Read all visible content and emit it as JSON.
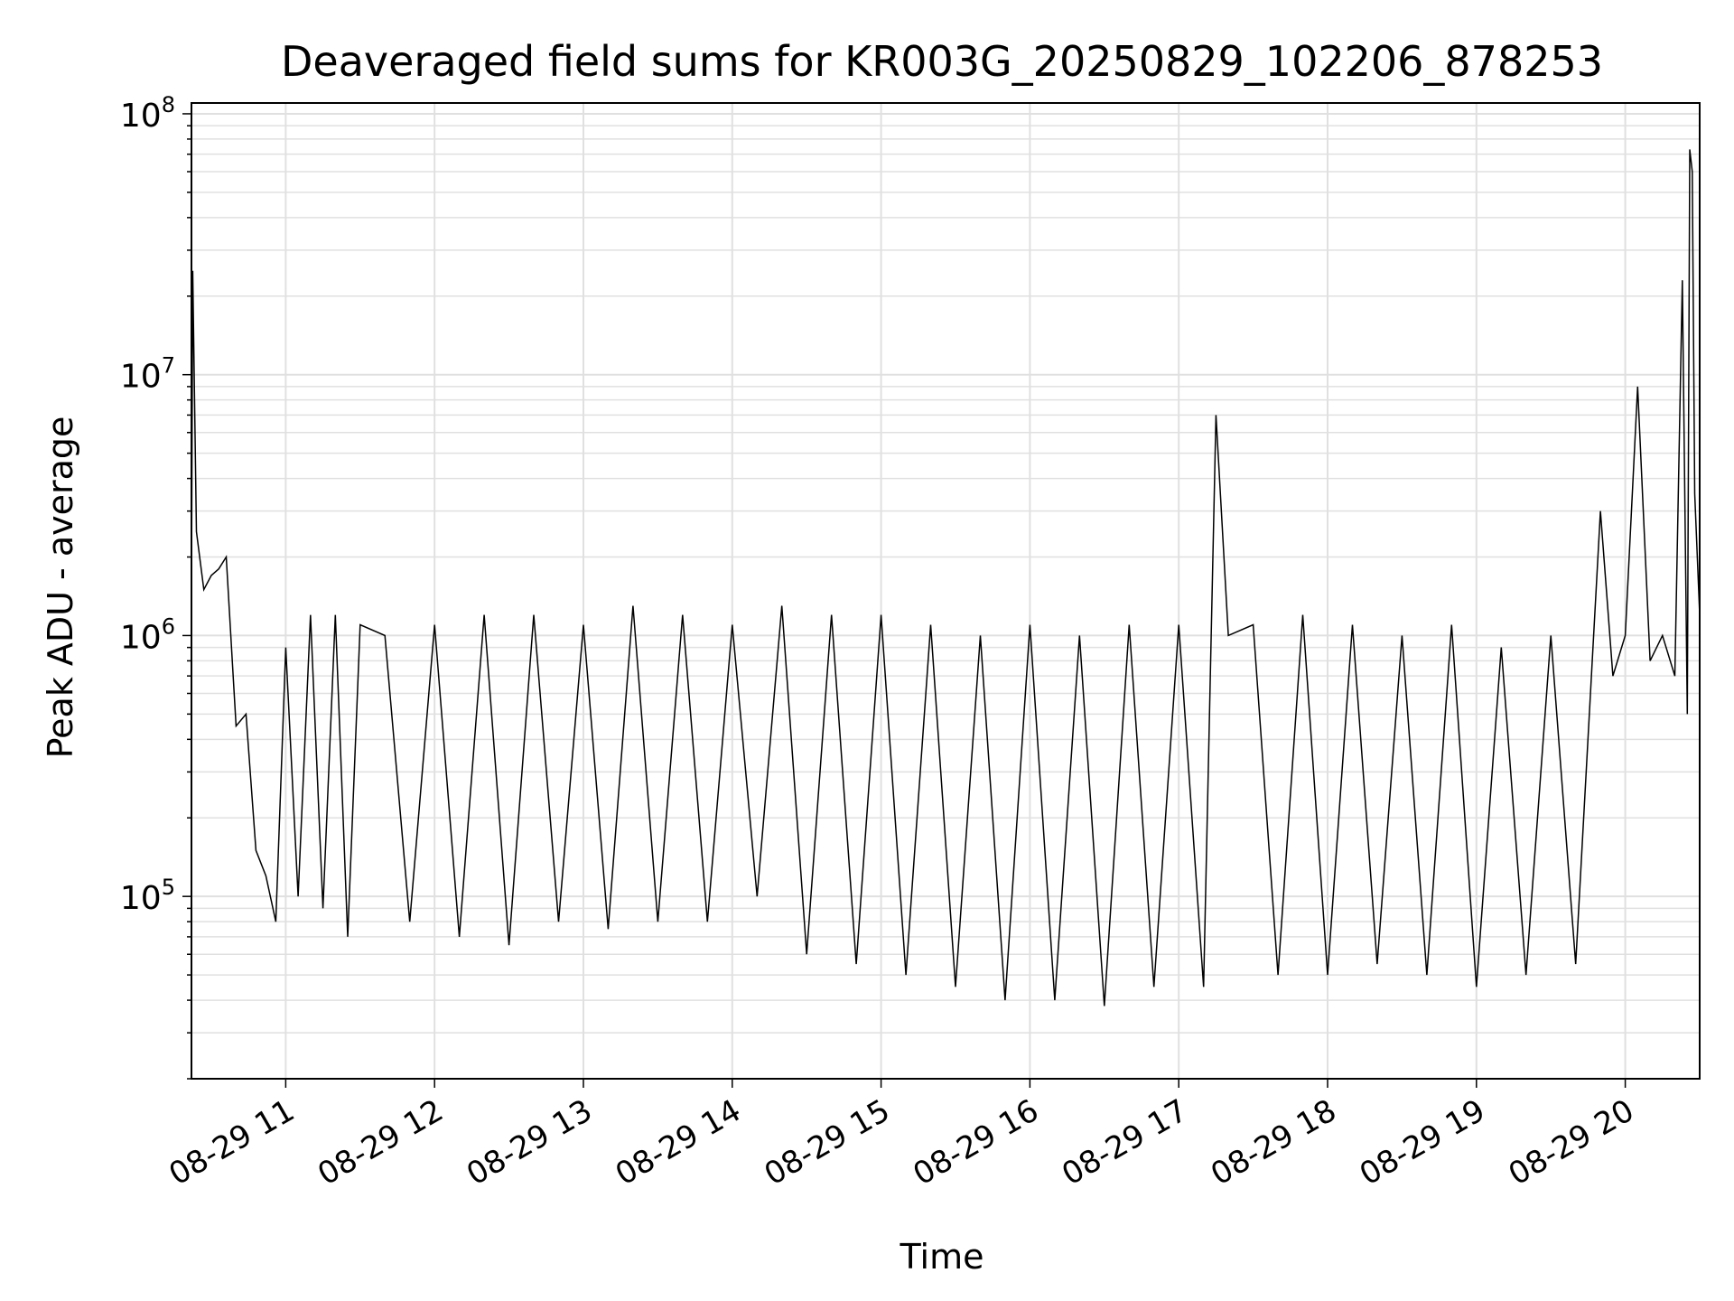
{
  "chart_data": {
    "type": "line",
    "title": "Deaveraged field sums for KR003G_20250829_102206_878253",
    "xlabel": "Time",
    "ylabel": "Peak ADU - average",
    "yscale": "log",
    "ylim": [
      20000,
      110000000
    ],
    "xlim": [
      "2025-08-29T10:22:00",
      "2025-08-29T20:30:00"
    ],
    "grid": true,
    "legend": "none",
    "line_color": "#000000",
    "grid_color": "#e0e0e0",
    "x_ticks": [
      {
        "value": "2025-08-29T11:00:00",
        "label": "08-29 11"
      },
      {
        "value": "2025-08-29T12:00:00",
        "label": "08-29 12"
      },
      {
        "value": "2025-08-29T13:00:00",
        "label": "08-29 13"
      },
      {
        "value": "2025-08-29T14:00:00",
        "label": "08-29 14"
      },
      {
        "value": "2025-08-29T15:00:00",
        "label": "08-29 15"
      },
      {
        "value": "2025-08-29T16:00:00",
        "label": "08-29 16"
      },
      {
        "value": "2025-08-29T17:00:00",
        "label": "08-29 17"
      },
      {
        "value": "2025-08-29T18:00:00",
        "label": "08-29 18"
      },
      {
        "value": "2025-08-29T19:00:00",
        "label": "08-29 19"
      },
      {
        "value": "2025-08-29T20:00:00",
        "label": "08-29 20"
      }
    ],
    "y_ticks": [
      {
        "value": 100000,
        "base": "10",
        "exp": "5"
      },
      {
        "value": 1000000,
        "base": "10",
        "exp": "6"
      },
      {
        "value": 10000000,
        "base": "10",
        "exp": "7"
      },
      {
        "value": 100000000,
        "base": "10",
        "exp": "8"
      }
    ],
    "series": [
      {
        "x": [
          "2025-08-29T10:22:00",
          "2025-08-29T10:22:30",
          "2025-08-29T10:24:00",
          "2025-08-29T10:27:00",
          "2025-08-29T10:30:00",
          "2025-08-29T10:33:00",
          "2025-08-29T10:36:00",
          "2025-08-29T10:40:00",
          "2025-08-29T10:44:00",
          "2025-08-29T10:48:00",
          "2025-08-29T10:52:00",
          "2025-08-29T10:56:00",
          "2025-08-29T11:00:00",
          "2025-08-29T11:05:00",
          "2025-08-29T11:10:00",
          "2025-08-29T11:15:00",
          "2025-08-29T11:20:00",
          "2025-08-29T11:25:00",
          "2025-08-29T11:30:00",
          "2025-08-29T11:40:00",
          "2025-08-29T11:50:00",
          "2025-08-29T12:00:00",
          "2025-08-29T12:10:00",
          "2025-08-29T12:20:00",
          "2025-08-29T12:30:00",
          "2025-08-29T12:40:00",
          "2025-08-29T12:50:00",
          "2025-08-29T13:00:00",
          "2025-08-29T13:10:00",
          "2025-08-29T13:20:00",
          "2025-08-29T13:30:00",
          "2025-08-29T13:40:00",
          "2025-08-29T13:50:00",
          "2025-08-29T14:00:00",
          "2025-08-29T14:10:00",
          "2025-08-29T14:20:00",
          "2025-08-29T14:30:00",
          "2025-08-29T14:40:00",
          "2025-08-29T14:50:00",
          "2025-08-29T15:00:00",
          "2025-08-29T15:10:00",
          "2025-08-29T15:20:00",
          "2025-08-29T15:30:00",
          "2025-08-29T15:40:00",
          "2025-08-29T15:50:00",
          "2025-08-29T16:00:00",
          "2025-08-29T16:10:00",
          "2025-08-29T16:20:00",
          "2025-08-29T16:30:00",
          "2025-08-29T16:40:00",
          "2025-08-29T16:50:00",
          "2025-08-29T17:00:00",
          "2025-08-29T17:10:00",
          "2025-08-29T17:15:00",
          "2025-08-29T17:20:00",
          "2025-08-29T17:30:00",
          "2025-08-29T17:40:00",
          "2025-08-29T17:50:00",
          "2025-08-29T18:00:00",
          "2025-08-29T18:10:00",
          "2025-08-29T18:20:00",
          "2025-08-29T18:30:00",
          "2025-08-29T18:40:00",
          "2025-08-29T18:50:00",
          "2025-08-29T19:00:00",
          "2025-08-29T19:10:00",
          "2025-08-29T19:20:00",
          "2025-08-29T19:30:00",
          "2025-08-29T19:40:00",
          "2025-08-29T19:50:00",
          "2025-08-29T19:55:00",
          "2025-08-29T20:00:00",
          "2025-08-29T20:05:00",
          "2025-08-29T20:10:00",
          "2025-08-29T20:15:00",
          "2025-08-29T20:20:00",
          "2025-08-29T20:23:00",
          "2025-08-29T20:25:00",
          "2025-08-29T20:26:00",
          "2025-08-29T20:27:00",
          "2025-08-29T20:28:00",
          "2025-08-29T20:30:00"
        ],
        "y": [
          1500000,
          25000000,
          2500000,
          1500000,
          1700000,
          1800000,
          2000000,
          450000,
          500000,
          150000,
          120000,
          80000,
          900000,
          100000,
          1200000,
          90000,
          1200000,
          70000,
          1100000,
          1000000,
          80000,
          1100000,
          70000,
          1200000,
          65000,
          1200000,
          80000,
          1100000,
          75000,
          1300000,
          80000,
          1200000,
          80000,
          1100000,
          100000,
          1300000,
          60000,
          1200000,
          55000,
          1200000,
          50000,
          1100000,
          45000,
          1000000,
          40000,
          1100000,
          40000,
          1000000,
          38000,
          1100000,
          45000,
          1100000,
          45000,
          7000000,
          1000000,
          1100000,
          50000,
          1200000,
          50000,
          1100000,
          55000,
          1000000,
          50000,
          1100000,
          45000,
          900000,
          50000,
          1000000,
          55000,
          3000000,
          700000,
          1000000,
          9000000,
          800000,
          1000000,
          700000,
          23000000,
          500000,
          73000000,
          60000000,
          3500000,
          1200000
        ]
      }
    ]
  }
}
